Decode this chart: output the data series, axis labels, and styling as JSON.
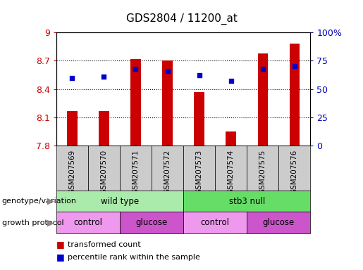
{
  "title": "GDS2804 / 11200_at",
  "samples": [
    "GSM207569",
    "GSM207570",
    "GSM207571",
    "GSM207572",
    "GSM207573",
    "GSM207574",
    "GSM207575",
    "GSM207576"
  ],
  "transformed_count": [
    8.17,
    8.17,
    8.72,
    8.7,
    8.37,
    7.95,
    8.78,
    8.88
  ],
  "percentile_rank": [
    60,
    61,
    68,
    66,
    62,
    57,
    68,
    70
  ],
  "y_min": 7.8,
  "y_max": 9.0,
  "y_ticks": [
    7.8,
    8.1,
    8.4,
    8.7,
    9.0
  ],
  "y_tick_labels": [
    "7.8",
    "8.1",
    "8.4",
    "8.7",
    "9"
  ],
  "y2_ticks": [
    0,
    25,
    50,
    75,
    100
  ],
  "y2_tick_labels": [
    "0",
    "25",
    "50",
    "75",
    "100%"
  ],
  "bar_color": "#cc0000",
  "dot_color": "#0000cc",
  "bar_bottom": 7.8,
  "genotype_groups": [
    {
      "label": "wild type",
      "start": 0,
      "end": 4,
      "color": "#aaeaaa"
    },
    {
      "label": "stb3 null",
      "start": 4,
      "end": 8,
      "color": "#66dd66"
    }
  ],
  "growth_groups": [
    {
      "label": "control",
      "start": 0,
      "end": 2,
      "color": "#ee99ee"
    },
    {
      "label": "glucose",
      "start": 2,
      "end": 4,
      "color": "#cc55cc"
    },
    {
      "label": "control",
      "start": 4,
      "end": 6,
      "color": "#ee99ee"
    },
    {
      "label": "glucose",
      "start": 6,
      "end": 8,
      "color": "#cc55cc"
    }
  ],
  "legend_items": [
    {
      "label": "transformed count",
      "color": "#cc0000"
    },
    {
      "label": "percentile rank within the sample",
      "color": "#0000cc"
    }
  ],
  "sample_bg": "#cccccc",
  "left_label_color": "#cc0000",
  "right_label_color": "#0000bb"
}
